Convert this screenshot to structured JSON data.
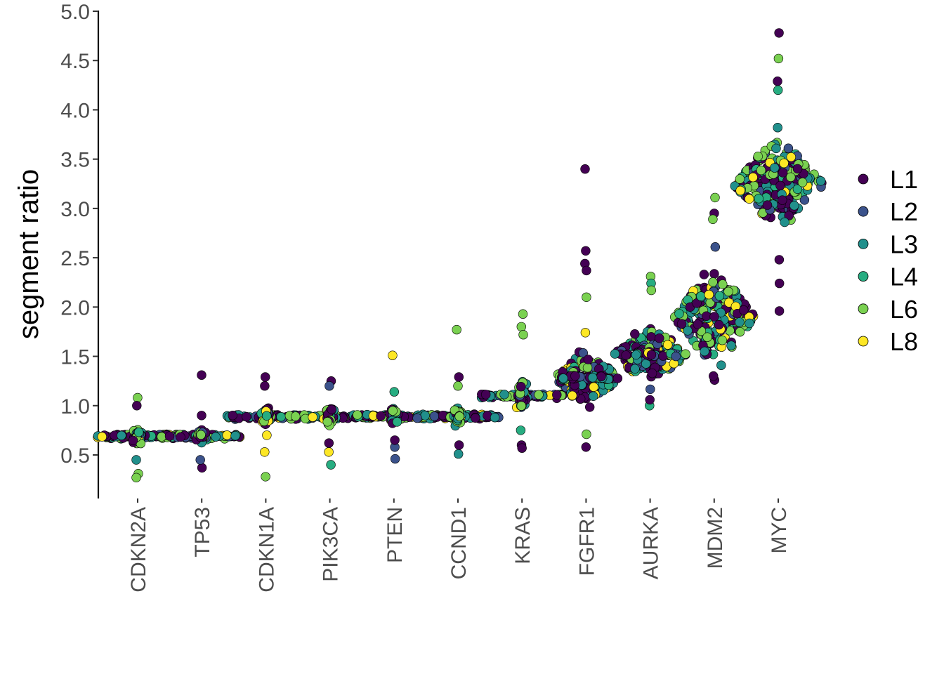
{
  "chart_data": {
    "type": "scatter",
    "subtype": "beeswarm",
    "title": "",
    "xlabel": "",
    "ylabel": "segment ratio",
    "ylim": [
      0,
      5.0
    ],
    "yticks": [
      "0.5",
      "1.0",
      "1.5",
      "2.0",
      "2.5",
      "3.0",
      "3.5",
      "4.0",
      "4.5",
      "5.0"
    ],
    "categories": [
      "CDKN2A",
      "TP53",
      "CDKN1A",
      "PIK3CA",
      "PTEN",
      "CCND1",
      "KRAS",
      "FGFR1",
      "AURKA",
      "MDM2",
      "MYC"
    ],
    "legend_position": "right",
    "legend": [
      {
        "label": "L1",
        "color": "#440154"
      },
      {
        "label": "L2",
        "color": "#3b528b"
      },
      {
        "label": "L3",
        "color": "#21908c"
      },
      {
        "label": "L4",
        "color": "#27ad81"
      },
      {
        "label": "L6",
        "color": "#7ad151"
      },
      {
        "label": "L8",
        "color": "#fde725"
      }
    ],
    "groups": [
      {
        "category": "CDKN2A",
        "center": 0.69,
        "spread": 0.12,
        "outliers": [
          {
            "v": 1.08,
            "s": "L6"
          },
          {
            "v": 1.0,
            "s": "L1"
          },
          {
            "v": 0.31,
            "s": "L6"
          },
          {
            "v": 0.27,
            "s": "L6"
          },
          {
            "v": 0.45,
            "s": "L3"
          }
        ]
      },
      {
        "category": "TP53",
        "center": 0.69,
        "spread": 0.12,
        "outliers": [
          {
            "v": 1.31,
            "s": "L1"
          },
          {
            "v": 0.37,
            "s": "L1"
          },
          {
            "v": 0.45,
            "s": "L2"
          },
          {
            "v": 0.9,
            "s": "L1"
          }
        ]
      },
      {
        "category": "CDKN1A",
        "center": 0.89,
        "spread": 0.16,
        "outliers": [
          {
            "v": 1.29,
            "s": "L1"
          },
          {
            "v": 1.2,
            "s": "L1"
          },
          {
            "v": 0.53,
            "s": "L8"
          },
          {
            "v": 0.28,
            "s": "L6"
          },
          {
            "v": 0.7,
            "s": "L8"
          }
        ]
      },
      {
        "category": "PIK3CA",
        "center": 0.89,
        "spread": 0.18,
        "outliers": [
          {
            "v": 1.25,
            "s": "L1"
          },
          {
            "v": 1.2,
            "s": "L2"
          },
          {
            "v": 0.53,
            "s": "L8"
          },
          {
            "v": 0.4,
            "s": "L4"
          },
          {
            "v": 0.62,
            "s": "L1"
          }
        ]
      },
      {
        "category": "PTEN",
        "center": 0.89,
        "spread": 0.15,
        "outliers": [
          {
            "v": 1.51,
            "s": "L8"
          },
          {
            "v": 1.14,
            "s": "L4"
          },
          {
            "v": 0.46,
            "s": "L2"
          },
          {
            "v": 0.58,
            "s": "L2"
          },
          {
            "v": 0.65,
            "s": "L1"
          }
        ]
      },
      {
        "category": "CCND1",
        "center": 0.89,
        "spread": 0.16,
        "outliers": [
          {
            "v": 1.77,
            "s": "L6"
          },
          {
            "v": 1.29,
            "s": "L1"
          },
          {
            "v": 1.2,
            "s": "L6"
          },
          {
            "v": 0.51,
            "s": "L3"
          },
          {
            "v": 0.6,
            "s": "L1"
          }
        ]
      },
      {
        "category": "KRAS",
        "center": 1.1,
        "spread": 0.3,
        "outliers": [
          {
            "v": 1.93,
            "s": "L6"
          },
          {
            "v": 1.8,
            "s": "L6"
          },
          {
            "v": 1.72,
            "s": "L6"
          },
          {
            "v": 0.6,
            "s": "L1"
          },
          {
            "v": 0.57,
            "s": "L1"
          },
          {
            "v": 0.75,
            "s": "L4"
          }
        ]
      },
      {
        "category": "FGFR1",
        "center": 1.28,
        "spread": 0.35,
        "outliers": [
          {
            "v": 3.4,
            "s": "L1"
          },
          {
            "v": 2.57,
            "s": "L1"
          },
          {
            "v": 2.44,
            "s": "L1"
          },
          {
            "v": 2.37,
            "s": "L1"
          },
          {
            "v": 2.1,
            "s": "L6"
          },
          {
            "v": 1.74,
            "s": "L8"
          },
          {
            "v": 0.58,
            "s": "L1"
          },
          {
            "v": 0.71,
            "s": "L6"
          }
        ]
      },
      {
        "category": "AURKA",
        "center": 1.52,
        "spread": 0.4,
        "outliers": [
          {
            "v": 2.31,
            "s": "L6"
          },
          {
            "v": 2.24,
            "s": "L4"
          },
          {
            "v": 2.17,
            "s": "L6"
          },
          {
            "v": 1.0,
            "s": "L4"
          },
          {
            "v": 1.06,
            "s": "L1"
          }
        ]
      },
      {
        "category": "MDM2",
        "center": 1.9,
        "spread": 0.6,
        "outliers": [
          {
            "v": 3.11,
            "s": "L6"
          },
          {
            "v": 2.95,
            "s": "L1"
          },
          {
            "v": 2.89,
            "s": "L6"
          },
          {
            "v": 2.61,
            "s": "L2"
          },
          {
            "v": 1.26,
            "s": "L1"
          },
          {
            "v": 1.3,
            "s": "L1"
          }
        ]
      },
      {
        "category": "MYC",
        "center": 3.25,
        "spread": 0.55,
        "outliers": [
          {
            "v": 4.78,
            "s": "L1"
          },
          {
            "v": 4.52,
            "s": "L6"
          },
          {
            "v": 4.29,
            "s": "L1"
          },
          {
            "v": 4.2,
            "s": "L4"
          },
          {
            "v": 3.82,
            "s": "L3"
          },
          {
            "v": 2.24,
            "s": "L1"
          },
          {
            "v": 1.96,
            "s": "L1"
          },
          {
            "v": 2.48,
            "s": "L1"
          }
        ]
      }
    ]
  }
}
